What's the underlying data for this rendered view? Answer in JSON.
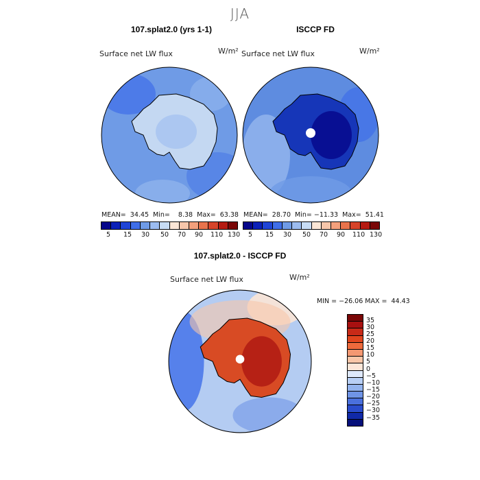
{
  "figure": {
    "season": "JJA"
  },
  "panels": [
    {
      "title": "107.splat2.0 (yrs 1-1)",
      "variable": "Surface net LW flux",
      "units": "W/m²",
      "stats": "MEAN=  34.45  Min=    8.38  Max=  63.38",
      "ocean_color": "#6f9be6",
      "land_color": "#c4d8f2"
    },
    {
      "title": "ISCCP FD",
      "variable": "Surface net LW flux",
      "units": "W/m²",
      "stats": "MEAN=  28.70  Min= −11.33  Max=  51.41",
      "ocean_color": "#5e8ce0",
      "land_color": "#1636b8"
    }
  ],
  "top_colorbar": {
    "colors": [
      "#05068a",
      "#0b20b8",
      "#1f44d6",
      "#3f6ee8",
      "#6f9be6",
      "#9cbcf0",
      "#c7dcf5",
      "#fbe6d6",
      "#f7c6aa",
      "#f3a07c",
      "#e8734c",
      "#d6442a",
      "#b51b12",
      "#7a0707"
    ],
    "tick_labels": [
      "5",
      "15",
      "30",
      "50",
      "70",
      "90",
      "110",
      "130"
    ]
  },
  "diff_panel": {
    "title": "107.splat2.0 - ISCCP FD",
    "variable": "Surface net LW flux",
    "units": "W/m²",
    "minmax": "MIN = −26.06 MAX =  44.43",
    "ocean_color": "#b4ccf2",
    "land_color": "#d84b24"
  },
  "diff_colorbar": {
    "colors": [
      "#7a0707",
      "#a81010",
      "#c82a18",
      "#e0451e",
      "#ee6a3c",
      "#f49872",
      "#f9c6a8",
      "#fde6d8",
      "#dfe9fb",
      "#b8cff5",
      "#93b3ee",
      "#6f94e6",
      "#4a70dd",
      "#2a4ccc",
      "#1029a8",
      "#06107a"
    ],
    "labels": [
      "35",
      "30",
      "25",
      "20",
      "15",
      "10",
      "5",
      "0",
      "−5",
      "−10",
      "−15",
      "−20",
      "−25",
      "−30",
      "−35"
    ]
  }
}
